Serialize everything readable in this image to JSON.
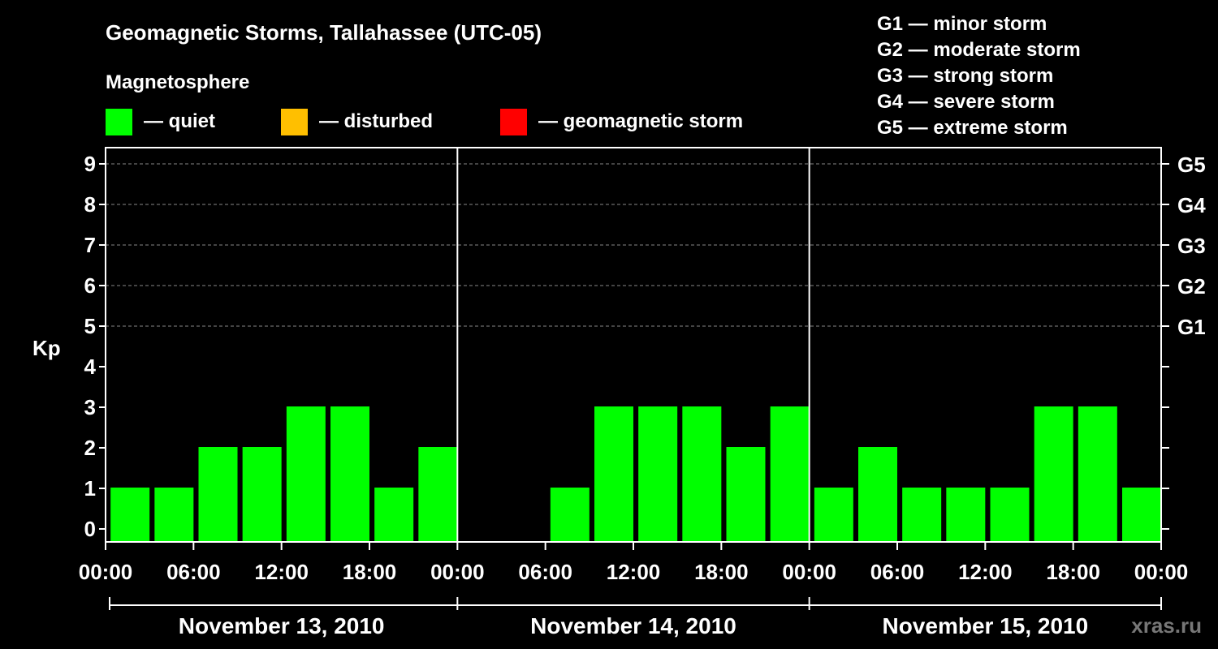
{
  "chart_data": {
    "type": "bar",
    "title": "Geomagnetic Storms, Tallahassee (UTC-05)",
    "ylabel": "Kp",
    "ylim": [
      0,
      9
    ],
    "y_ticks": [
      "0",
      "1",
      "2",
      "3",
      "4",
      "5",
      "6",
      "7",
      "8",
      "9"
    ],
    "right_axis_labels": [
      {
        "kp": 5,
        "label": "G1"
      },
      {
        "kp": 6,
        "label": "G2"
      },
      {
        "kp": 7,
        "label": "G3"
      },
      {
        "kp": 8,
        "label": "G4"
      },
      {
        "kp": 9,
        "label": "G5"
      }
    ],
    "storm_scale": [
      "G1 — minor storm",
      "G2 — moderate storm",
      "G3 — strong storm",
      "G4 — severe storm",
      "G5 — extreme storm"
    ],
    "legend": {
      "title": "Magnetosphere",
      "entries": [
        {
          "label": "— quiet",
          "color": "#00ff00"
        },
        {
          "label": "— disturbed",
          "color": "#ffbf00"
        },
        {
          "label": "— geomagnetic storm",
          "color": "#ff0000"
        }
      ]
    },
    "x_tick_labels": [
      "00:00",
      "06:00",
      "12:00",
      "18:00",
      "00:00",
      "06:00",
      "12:00",
      "18:00",
      "00:00",
      "06:00",
      "12:00",
      "18:00",
      "00:00"
    ],
    "days": [
      "November 13, 2010",
      "November 14, 2010",
      "November 15, 2010"
    ],
    "bar_hours": [
      3,
      6,
      9,
      12,
      15,
      18,
      21,
      24,
      27,
      30,
      33,
      36,
      39,
      42,
      45,
      48,
      51,
      54,
      57,
      60,
      63,
      66,
      69,
      72
    ],
    "values": [
      1,
      1,
      2,
      2,
      3,
      3,
      1,
      2,
      0,
      0,
      1,
      3,
      3,
      3,
      2,
      3,
      1,
      2,
      1,
      1,
      1,
      3,
      3,
      1
    ],
    "quiet_color": "#00ff00",
    "watermark": "xras.ru"
  }
}
